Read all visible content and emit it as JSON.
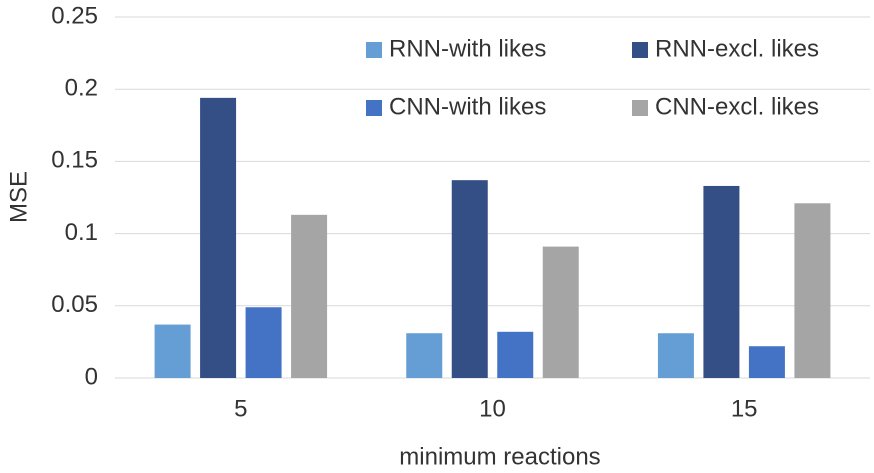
{
  "chart_data": {
    "type": "bar",
    "x_label": "minimum reactions",
    "y_label": "MSE",
    "categories": [
      "5",
      "10",
      "15"
    ],
    "series": [
      {
        "name": "RNN-with likes",
        "color": "#659ed4",
        "values": [
          0.037,
          0.031,
          0.031
        ]
      },
      {
        "name": "RNN-excl. likes",
        "color": "#344e86",
        "values": [
          0.194,
          0.137,
          0.133
        ]
      },
      {
        "name": "CNN-with likes",
        "color": "#4472c4",
        "values": [
          0.049,
          0.032,
          0.022
        ]
      },
      {
        "name": "CNN-excl. likes",
        "color": "#a5a5a5",
        "values": [
          0.113,
          0.091,
          0.121
        ]
      }
    ],
    "ylim": [
      0,
      0.25
    ],
    "yticks": [
      0,
      0.05,
      0.1,
      0.15,
      0.2,
      0.25
    ],
    "grid": true,
    "legend": "top-right"
  }
}
